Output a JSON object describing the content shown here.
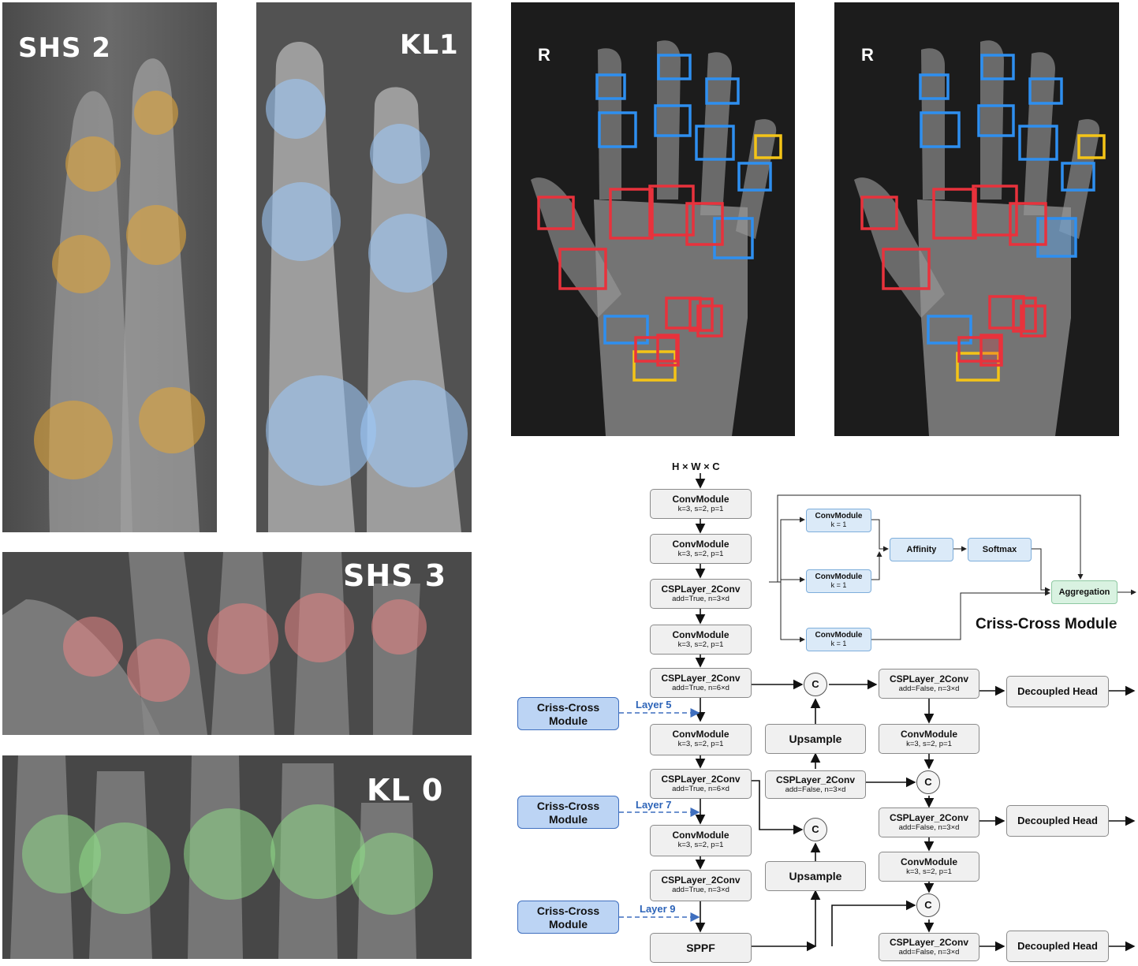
{
  "panels": {
    "shs2": {
      "grade": "SHS 2",
      "overlay_color": "#e0a53a"
    },
    "kl1": {
      "grade": "KL1",
      "overlay_color": "#9cc6f5"
    },
    "shs3": {
      "grade": "SHS 3",
      "overlay_color": "#e98585"
    },
    "kl0": {
      "grade": "KL 0",
      "overlay_color": "#8fd889"
    },
    "hand_a": {
      "side_marker": "R"
    },
    "hand_b": {
      "side_marker": "R"
    }
  },
  "box_colors": {
    "red": "#e8323c",
    "blue": "#2e8ff0",
    "yellow": "#f4c417"
  },
  "diagram": {
    "input_dims": "H × W × C",
    "backbone": [
      {
        "name": "ConvModule",
        "params": "k=3, s=2, p=1"
      },
      {
        "name": "ConvModule",
        "params": "k=3, s=2, p=1"
      },
      {
        "name": "CSPLayer_2Conv",
        "params": "add=True, n=3×d"
      },
      {
        "name": "ConvModule",
        "params": "k=3, s=2, p=1"
      },
      {
        "name": "CSPLayer_2Conv",
        "params": "add=True, n=6×d"
      },
      {
        "name": "ConvModule",
        "params": "k=3, s=2, p=1"
      },
      {
        "name": "CSPLayer_2Conv",
        "params": "add=True, n=6×d"
      },
      {
        "name": "ConvModule",
        "params": "k=3, s=2, p=1"
      },
      {
        "name": "CSPLayer_2Conv",
        "params": "add=True, n=3×d"
      },
      {
        "name": "SPPF",
        "params": ""
      }
    ],
    "criss_cross_modules": [
      {
        "label": "Criss-Cross\nModule",
        "layer": "Layer 5"
      },
      {
        "label": "Criss-Cross\nModule",
        "layer": "Layer 7"
      },
      {
        "label": "Criss-Cross\nModule",
        "layer": "Layer 9"
      }
    ],
    "neck": {
      "upsample_1": "Upsample",
      "upsample_2": "Upsample",
      "csp_mid": {
        "name": "CSPLayer_2Conv",
        "params": "add=False, n=3×d"
      },
      "concat": "C"
    },
    "head": [
      {
        "name": "CSPLayer_2Conv",
        "params": "add=False, n=3×d"
      },
      {
        "name": "ConvModule",
        "params": "k=3, s=2, p=1"
      },
      {
        "name": "CSPLayer_2Conv",
        "params": "add=False, n=3×d"
      },
      {
        "name": "ConvModule",
        "params": "k=3, s=2, p=1"
      },
      {
        "name": "CSPLayer_2Conv",
        "params": "add=False, n=3×d"
      }
    ],
    "decoupled_head": "Decoupled Head",
    "ccm": {
      "title": "Criss-Cross Module",
      "conv_a": {
        "name": "ConvModule",
        "params": "k = 1"
      },
      "conv_b": {
        "name": "ConvModule",
        "params": "k = 1"
      },
      "conv_c": {
        "name": "ConvModule",
        "params": "k = 1"
      },
      "affinity": "Affinity",
      "softmax": "Softmax",
      "aggregation": "Aggregation"
    }
  }
}
